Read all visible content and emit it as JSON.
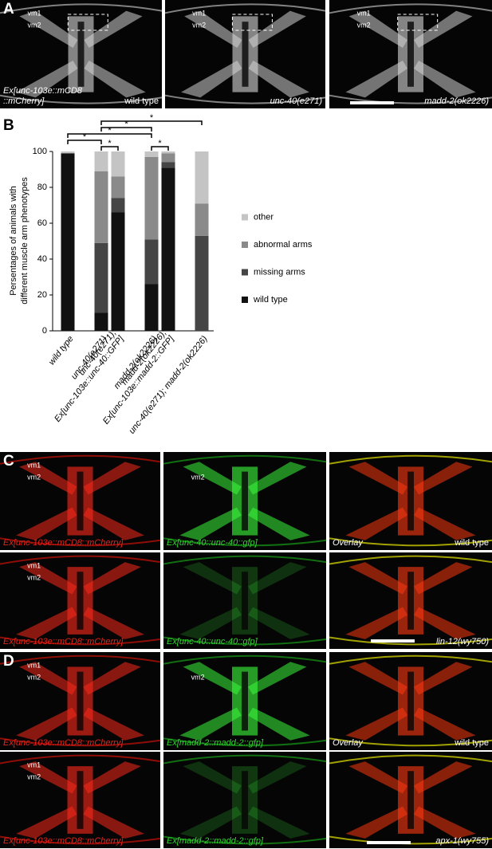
{
  "panel_a": {
    "letter": "A",
    "images": [
      {
        "vm1": "vm1",
        "vm2": "vm2",
        "genotype": [
          "Ex[unc-103e::mCD8",
          "::mCherry]"
        ],
        "condition": "wild type"
      },
      {
        "vm1": "vm1",
        "vm2": "vm2",
        "genotype": [
          "unc-40(e271)"
        ]
      },
      {
        "vm1": "vm1",
        "vm2": "vm2",
        "genotype": [
          "madd-2(ok2226)"
        ]
      }
    ]
  },
  "panel_b": {
    "letter": "B"
  },
  "chart_data": {
    "type": "bar",
    "stacked": true,
    "ylabel": [
      "Persentages of animals with",
      "different muscle arm phenotypes"
    ],
    "categories": [
      [
        "wild type"
      ],
      null,
      [
        "unc-40(e271)"
      ],
      [
        "unc-40(e271);",
        "Ex[unc-103e::unc-40::GFP]"
      ],
      null,
      [
        "madd-2(ok2226)"
      ],
      [
        "madd-2(ok2226);",
        "Ex[unc-103e::madd-2::GFP]"
      ],
      null,
      [
        "unc-40(e271); madd-2(ok2226)"
      ]
    ],
    "series": [
      {
        "name": "wild type",
        "color": "#111111",
        "values": [
          99,
          null,
          10,
          66,
          null,
          26,
          91,
          null,
          0
        ]
      },
      {
        "name": "missing arms",
        "color": "#454545",
        "values": [
          0,
          null,
          39,
          8,
          null,
          25,
          3,
          null,
          53
        ]
      },
      {
        "name": "abnormal arms",
        "color": "#8a8a8a",
        "values": [
          0,
          null,
          40,
          12,
          null,
          46,
          5,
          null,
          18
        ]
      },
      {
        "name": "other",
        "color": "#c4c4c4",
        "values": [
          1,
          null,
          11,
          14,
          null,
          3,
          1,
          null,
          29
        ]
      }
    ],
    "ylim": [
      0,
      100
    ],
    "yticks": [
      0,
      20,
      40,
      60,
      80,
      100
    ],
    "significance": [
      "*",
      "*",
      "*",
      "*",
      "*",
      "*"
    ]
  },
  "panel_c": {
    "letter": "C",
    "rows": [
      [
        {
          "vm1": "vm1",
          "vm2": "vm2",
          "label": "Ex[unc-103e::mCD8::mCherry]"
        },
        {
          "vm2": "vm2",
          "label": "Ex[unc-40::unc-40::gfp]"
        },
        {
          "label": "Overlay",
          "condition": "wild type"
        }
      ],
      [
        {
          "vm1": "vm1",
          "vm2": "vm2",
          "label": "Ex[unc-103e::mCD8::mCherry]"
        },
        {
          "label": "Ex[unc-40::unc-40::gfp]"
        },
        {
          "condition": "lin-12(wy750)"
        }
      ]
    ]
  },
  "panel_d": {
    "letter": "D",
    "rows": [
      [
        {
          "vm1": "vm1",
          "vm2": "vm2",
          "label": "Ex[unc-103e::mCD8::mCherry]"
        },
        {
          "vm2": "vm2",
          "label": "Ex[madd-2::madd-2::gfp]"
        },
        {
          "label": "Overlay",
          "condition": "wild type"
        }
      ],
      [
        {
          "vm1": "vm1",
          "vm2": "vm2",
          "label": "Ex[unc-103e::mCD8::mCherry]"
        },
        {
          "label": "Ex[madd-2::madd-2::gfp]"
        },
        {
          "condition": "apx-1(wy755)"
        }
      ]
    ]
  }
}
